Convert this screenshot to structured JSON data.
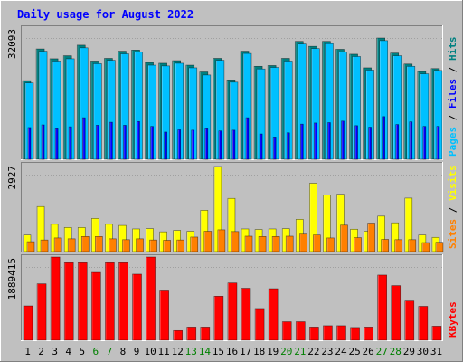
{
  "chart_data": {
    "type": "bar",
    "title": "Daily usage for August 2022",
    "x": [
      "1",
      "2",
      "3",
      "4",
      "5",
      "6",
      "7",
      "8",
      "9",
      "10",
      "11",
      "12",
      "13",
      "14",
      "15",
      "16",
      "17",
      "18",
      "19",
      "20",
      "21",
      "22",
      "23",
      "24",
      "25",
      "26",
      "27",
      "28",
      "29",
      "30",
      "31"
    ],
    "weekend_days": [
      "6",
      "7",
      "13",
      "14",
      "20",
      "21",
      "27",
      "28"
    ],
    "panels": [
      {
        "name": "hits-files-pages",
        "ymax_label": "32093",
        "ymax": 32093,
        "side_label": {
          "pages": "Pages",
          "files": "Files",
          "hits": "Hits",
          "sep": " / "
        },
        "series": [
          {
            "name": "Hits",
            "color": "#008080",
            "values": [
              20800,
              29200,
              26600,
              27400,
              30200,
              26000,
              26700,
              28600,
              28900,
              25600,
              25400,
              26100,
              24900,
              23100,
              26700,
              21000,
              28600,
              24600,
              24800,
              26700,
              31200,
              29900,
              31200,
              29100,
              27800,
              24200,
              32093,
              28100,
              25200,
              23200,
              24000
            ]
          },
          {
            "name": "Files",
            "color": "#00c0ff",
            "values": [
              20200,
              28600,
              26000,
              26600,
              29500,
              25300,
              26200,
              27900,
              28400,
              24900,
              24700,
              25400,
              24200,
              22300,
              26200,
              20400,
              28000,
              23900,
              24300,
              26000,
              30500,
              29300,
              30600,
              28400,
              27200,
              23600,
              31400,
              27400,
              24600,
              22600,
              23500
            ]
          },
          {
            "name": "Pages",
            "color": "#0000ff",
            "values": [
              8400,
              9100,
              8300,
              8600,
              11000,
              9000,
              9800,
              9000,
              10000,
              8700,
              7200,
              7800,
              7700,
              8300,
              7500,
              7700,
              11000,
              6700,
              5900,
              7000,
              9300,
              9600,
              9700,
              10100,
              8900,
              8500,
              11300,
              9200,
              9900,
              8700,
              8700
            ]
          }
        ]
      },
      {
        "name": "visits-sites",
        "ymax_label": "2927",
        "ymax": 2927,
        "side_label": {
          "sites": "Sites",
          "visits": "Visits",
          "sep": " / "
        },
        "series": [
          {
            "name": "Visits",
            "color": "#ffff00",
            "values": [
              570,
              1550,
              940,
              830,
              830,
              1140,
              940,
              900,
              780,
              790,
              680,
              730,
              700,
              1420,
              2927,
              1830,
              780,
              760,
              780,
              790,
              1110,
              2350,
              1950,
              1970,
              770,
              700,
              1220,
              990,
              1840,
              570,
              490
            ]
          },
          {
            "name": "Sites",
            "color": "#ff8000",
            "values": [
              340,
              400,
              470,
              440,
              520,
              520,
              440,
              410,
              440,
              400,
              390,
              400,
              500,
              700,
              750,
              690,
              530,
              520,
              520,
              530,
              600,
              570,
              470,
              910,
              480,
              980,
              420,
              410,
              410,
              310,
              320
            ]
          }
        ]
      },
      {
        "name": "kbytes",
        "ymax_label": "1889415",
        "ymax": 1889415,
        "side_label": {
          "kbytes": "KBytes"
        },
        "series": [
          {
            "name": "KBytes",
            "color": "#ff0000",
            "values": [
              780000,
              1280000,
              1889415,
              1760000,
              1760000,
              1540000,
              1760000,
              1760000,
              1500000,
              1889415,
              1140000,
              220000,
              300000,
              300000,
              1000000,
              1300000,
              1180000,
              720000,
              1170000,
              420000,
              420000,
              300000,
              330000,
              330000,
              290000,
              300000,
              1480000,
              1240000,
              890000,
              770000,
              320000
            ]
          }
        ]
      }
    ],
    "colors": {
      "background": "#c0c0c0",
      "title": "#0000ff",
      "axis_text": "#000000",
      "weekend_text": "#008000"
    }
  }
}
